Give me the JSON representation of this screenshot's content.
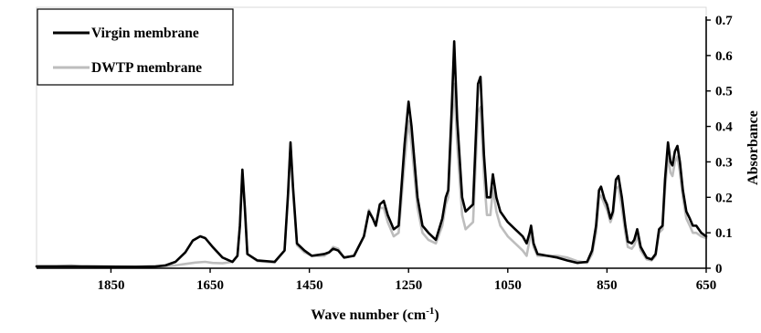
{
  "chart_data": {
    "type": "line",
    "title": "",
    "xlabel": "Wave number (cm",
    "xlabel_sup": "-1",
    "xlabel_close": ")",
    "ylabel": "Absorbance",
    "xlim": [
      2000,
      650
    ],
    "x_reversed": true,
    "ylim": [
      0,
      0.7
    ],
    "grid": false,
    "legend_position": "top-left",
    "x_ticks": [
      1850,
      1650,
      1450,
      1250,
      1050,
      850,
      650
    ],
    "y_ticks": [
      0,
      0.1,
      0.2,
      0.3,
      0.4,
      0.5,
      0.6,
      0.7
    ],
    "x_tick_labels": [
      "1850",
      "1650",
      "1450",
      "1250",
      "1050",
      "850",
      "650"
    ],
    "y_tick_labels": [
      "0",
      "0.1",
      "0.2",
      "0.3",
      "0.4",
      "0.5",
      "0.6",
      "0.7"
    ],
    "series": [
      {
        "name": "Virgin membrane",
        "color": "#000000",
        "points": [
          [
            2000,
            0.005
          ],
          [
            1900,
            0.005
          ],
          [
            1800,
            0.004
          ],
          [
            1760,
            0.005
          ],
          [
            1740,
            0.008
          ],
          [
            1720,
            0.018
          ],
          [
            1700,
            0.045
          ],
          [
            1685,
            0.078
          ],
          [
            1670,
            0.09
          ],
          [
            1660,
            0.085
          ],
          [
            1645,
            0.06
          ],
          [
            1625,
            0.03
          ],
          [
            1605,
            0.018
          ],
          [
            1595,
            0.035
          ],
          [
            1590,
            0.12
          ],
          [
            1585,
            0.278
          ],
          [
            1580,
            0.17
          ],
          [
            1575,
            0.04
          ],
          [
            1555,
            0.022
          ],
          [
            1520,
            0.018
          ],
          [
            1500,
            0.05
          ],
          [
            1493,
            0.21
          ],
          [
            1488,
            0.355
          ],
          [
            1483,
            0.23
          ],
          [
            1475,
            0.07
          ],
          [
            1460,
            0.05
          ],
          [
            1445,
            0.035
          ],
          [
            1420,
            0.04
          ],
          [
            1410,
            0.045
          ],
          [
            1402,
            0.055
          ],
          [
            1392,
            0.05
          ],
          [
            1380,
            0.03
          ],
          [
            1360,
            0.035
          ],
          [
            1340,
            0.09
          ],
          [
            1330,
            0.16
          ],
          [
            1322,
            0.14
          ],
          [
            1316,
            0.12
          ],
          [
            1308,
            0.18
          ],
          [
            1300,
            0.19
          ],
          [
            1292,
            0.15
          ],
          [
            1280,
            0.11
          ],
          [
            1270,
            0.12
          ],
          [
            1258,
            0.35
          ],
          [
            1250,
            0.47
          ],
          [
            1244,
            0.4
          ],
          [
            1232,
            0.2
          ],
          [
            1222,
            0.12
          ],
          [
            1210,
            0.1
          ],
          [
            1195,
            0.08
          ],
          [
            1182,
            0.14
          ],
          [
            1175,
            0.2
          ],
          [
            1170,
            0.22
          ],
          [
            1163,
            0.45
          ],
          [
            1158,
            0.64
          ],
          [
            1152,
            0.42
          ],
          [
            1142,
            0.2
          ],
          [
            1135,
            0.16
          ],
          [
            1120,
            0.18
          ],
          [
            1110,
            0.52
          ],
          [
            1105,
            0.54
          ],
          [
            1098,
            0.32
          ],
          [
            1092,
            0.2
          ],
          [
            1085,
            0.2
          ],
          [
            1080,
            0.265
          ],
          [
            1073,
            0.2
          ],
          [
            1065,
            0.16
          ],
          [
            1050,
            0.13
          ],
          [
            1035,
            0.11
          ],
          [
            1020,
            0.09
          ],
          [
            1012,
            0.07
          ],
          [
            1006,
            0.1
          ],
          [
            1003,
            0.12
          ],
          [
            998,
            0.07
          ],
          [
            990,
            0.04
          ],
          [
            970,
            0.035
          ],
          [
            950,
            0.03
          ],
          [
            930,
            0.022
          ],
          [
            910,
            0.015
          ],
          [
            890,
            0.018
          ],
          [
            880,
            0.05
          ],
          [
            872,
            0.12
          ],
          [
            866,
            0.22
          ],
          [
            862,
            0.23
          ],
          [
            855,
            0.195
          ],
          [
            850,
            0.18
          ],
          [
            843,
            0.14
          ],
          [
            838,
            0.16
          ],
          [
            832,
            0.25
          ],
          [
            827,
            0.26
          ],
          [
            820,
            0.2
          ],
          [
            813,
            0.12
          ],
          [
            808,
            0.075
          ],
          [
            800,
            0.07
          ],
          [
            795,
            0.08
          ],
          [
            789,
            0.11
          ],
          [
            782,
            0.06
          ],
          [
            770,
            0.03
          ],
          [
            760,
            0.025
          ],
          [
            752,
            0.04
          ],
          [
            745,
            0.11
          ],
          [
            738,
            0.12
          ],
          [
            733,
            0.25
          ],
          [
            727,
            0.355
          ],
          [
            722,
            0.3
          ],
          [
            718,
            0.29
          ],
          [
            713,
            0.33
          ],
          [
            708,
            0.345
          ],
          [
            703,
            0.3
          ],
          [
            697,
            0.22
          ],
          [
            690,
            0.16
          ],
          [
            683,
            0.14
          ],
          [
            677,
            0.12
          ],
          [
            670,
            0.12
          ],
          [
            660,
            0.1
          ],
          [
            650,
            0.09
          ]
        ]
      },
      {
        "name": "DWTP membrane",
        "color": "#bdbdbd",
        "points": [
          [
            2000,
            0.006
          ],
          [
            1960,
            0.006
          ],
          [
            1930,
            0.008
          ],
          [
            1910,
            0.005
          ],
          [
            1800,
            0.004
          ],
          [
            1740,
            0.006
          ],
          [
            1720,
            0.008
          ],
          [
            1700,
            0.012
          ],
          [
            1680,
            0.016
          ],
          [
            1660,
            0.018
          ],
          [
            1645,
            0.015
          ],
          [
            1625,
            0.014
          ],
          [
            1605,
            0.018
          ],
          [
            1595,
            0.035
          ],
          [
            1590,
            0.12
          ],
          [
            1585,
            0.27
          ],
          [
            1580,
            0.165
          ],
          [
            1575,
            0.04
          ],
          [
            1555,
            0.02
          ],
          [
            1520,
            0.016
          ],
          [
            1500,
            0.05
          ],
          [
            1493,
            0.2
          ],
          [
            1488,
            0.345
          ],
          [
            1483,
            0.22
          ],
          [
            1475,
            0.065
          ],
          [
            1460,
            0.045
          ],
          [
            1445,
            0.035
          ],
          [
            1420,
            0.035
          ],
          [
            1410,
            0.045
          ],
          [
            1402,
            0.06
          ],
          [
            1392,
            0.055
          ],
          [
            1380,
            0.03
          ],
          [
            1360,
            0.035
          ],
          [
            1340,
            0.09
          ],
          [
            1330,
            0.165
          ],
          [
            1322,
            0.14
          ],
          [
            1316,
            0.12
          ],
          [
            1308,
            0.17
          ],
          [
            1300,
            0.17
          ],
          [
            1292,
            0.13
          ],
          [
            1280,
            0.09
          ],
          [
            1270,
            0.1
          ],
          [
            1258,
            0.3
          ],
          [
            1250,
            0.415
          ],
          [
            1244,
            0.35
          ],
          [
            1232,
            0.17
          ],
          [
            1222,
            0.1
          ],
          [
            1210,
            0.08
          ],
          [
            1195,
            0.07
          ],
          [
            1182,
            0.12
          ],
          [
            1175,
            0.18
          ],
          [
            1170,
            0.2
          ],
          [
            1163,
            0.4
          ],
          [
            1158,
            0.52
          ],
          [
            1152,
            0.35
          ],
          [
            1142,
            0.15
          ],
          [
            1135,
            0.11
          ],
          [
            1120,
            0.13
          ],
          [
            1110,
            0.44
          ],
          [
            1105,
            0.455
          ],
          [
            1098,
            0.26
          ],
          [
            1092,
            0.15
          ],
          [
            1085,
            0.15
          ],
          [
            1080,
            0.225
          ],
          [
            1073,
            0.16
          ],
          [
            1065,
            0.12
          ],
          [
            1050,
            0.09
          ],
          [
            1035,
            0.07
          ],
          [
            1020,
            0.05
          ],
          [
            1012,
            0.035
          ],
          [
            1006,
            0.08
          ],
          [
            1003,
            0.11
          ],
          [
            998,
            0.06
          ],
          [
            990,
            0.035
          ],
          [
            970,
            0.035
          ],
          [
            950,
            0.035
          ],
          [
            930,
            0.03
          ],
          [
            910,
            0.02
          ],
          [
            890,
            0.015
          ],
          [
            880,
            0.04
          ],
          [
            872,
            0.1
          ],
          [
            866,
            0.2
          ],
          [
            862,
            0.205
          ],
          [
            855,
            0.18
          ],
          [
            850,
            0.165
          ],
          [
            843,
            0.13
          ],
          [
            838,
            0.15
          ],
          [
            832,
            0.225
          ],
          [
            827,
            0.23
          ],
          [
            820,
            0.17
          ],
          [
            813,
            0.1
          ],
          [
            808,
            0.06
          ],
          [
            800,
            0.055
          ],
          [
            795,
            0.065
          ],
          [
            789,
            0.09
          ],
          [
            782,
            0.05
          ],
          [
            770,
            0.025
          ],
          [
            760,
            0.022
          ],
          [
            752,
            0.035
          ],
          [
            745,
            0.1
          ],
          [
            738,
            0.11
          ],
          [
            733,
            0.22
          ],
          [
            727,
            0.32
          ],
          [
            722,
            0.27
          ],
          [
            718,
            0.26
          ],
          [
            713,
            0.3
          ],
          [
            708,
            0.315
          ],
          [
            703,
            0.27
          ],
          [
            697,
            0.2
          ],
          [
            690,
            0.14
          ],
          [
            683,
            0.12
          ],
          [
            677,
            0.1
          ],
          [
            670,
            0.1
          ],
          [
            660,
            0.09
          ],
          [
            650,
            0.085
          ]
        ]
      }
    ],
    "legend": [
      {
        "label": "Virgin membrane",
        "color": "#000000"
      },
      {
        "label": "DWTP membrane",
        "color": "#bdbdbd"
      }
    ]
  }
}
